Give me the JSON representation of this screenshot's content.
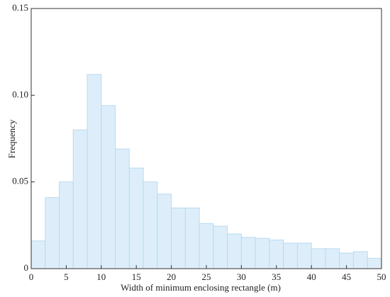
{
  "chart_data": {
    "type": "histogram",
    "x_label": "Width of minimum enclosing rectangle (m)",
    "y_label": "Frequency",
    "bins": [
      0,
      2,
      4,
      6,
      8,
      10,
      12,
      14,
      16,
      18,
      20,
      22,
      24,
      26,
      28,
      30,
      32,
      34,
      36,
      38,
      40,
      42,
      44,
      46,
      48,
      50
    ],
    "values": [
      0.016,
      0.041,
      0.05,
      0.08,
      0.112,
      0.094,
      0.069,
      0.058,
      0.05,
      0.043,
      0.035,
      0.035,
      0.026,
      0.0245,
      0.02,
      0.018,
      0.0175,
      0.0165,
      0.0147,
      0.0147,
      0.0115,
      0.0115,
      0.009,
      0.0098,
      0.006
    ],
    "color": "#ddeefa",
    "edge_color": "#b9d9f0",
    "xlim": [
      0,
      50
    ],
    "xticks": [
      0,
      5,
      10,
      15,
      20,
      25,
      30,
      35,
      40,
      45,
      50
    ],
    "ylim": [
      0,
      0.15
    ],
    "yticks": [
      0,
      0.05,
      {
        "value": 0.1,
        "label": "0.10"
      },
      0.15
    ]
  }
}
